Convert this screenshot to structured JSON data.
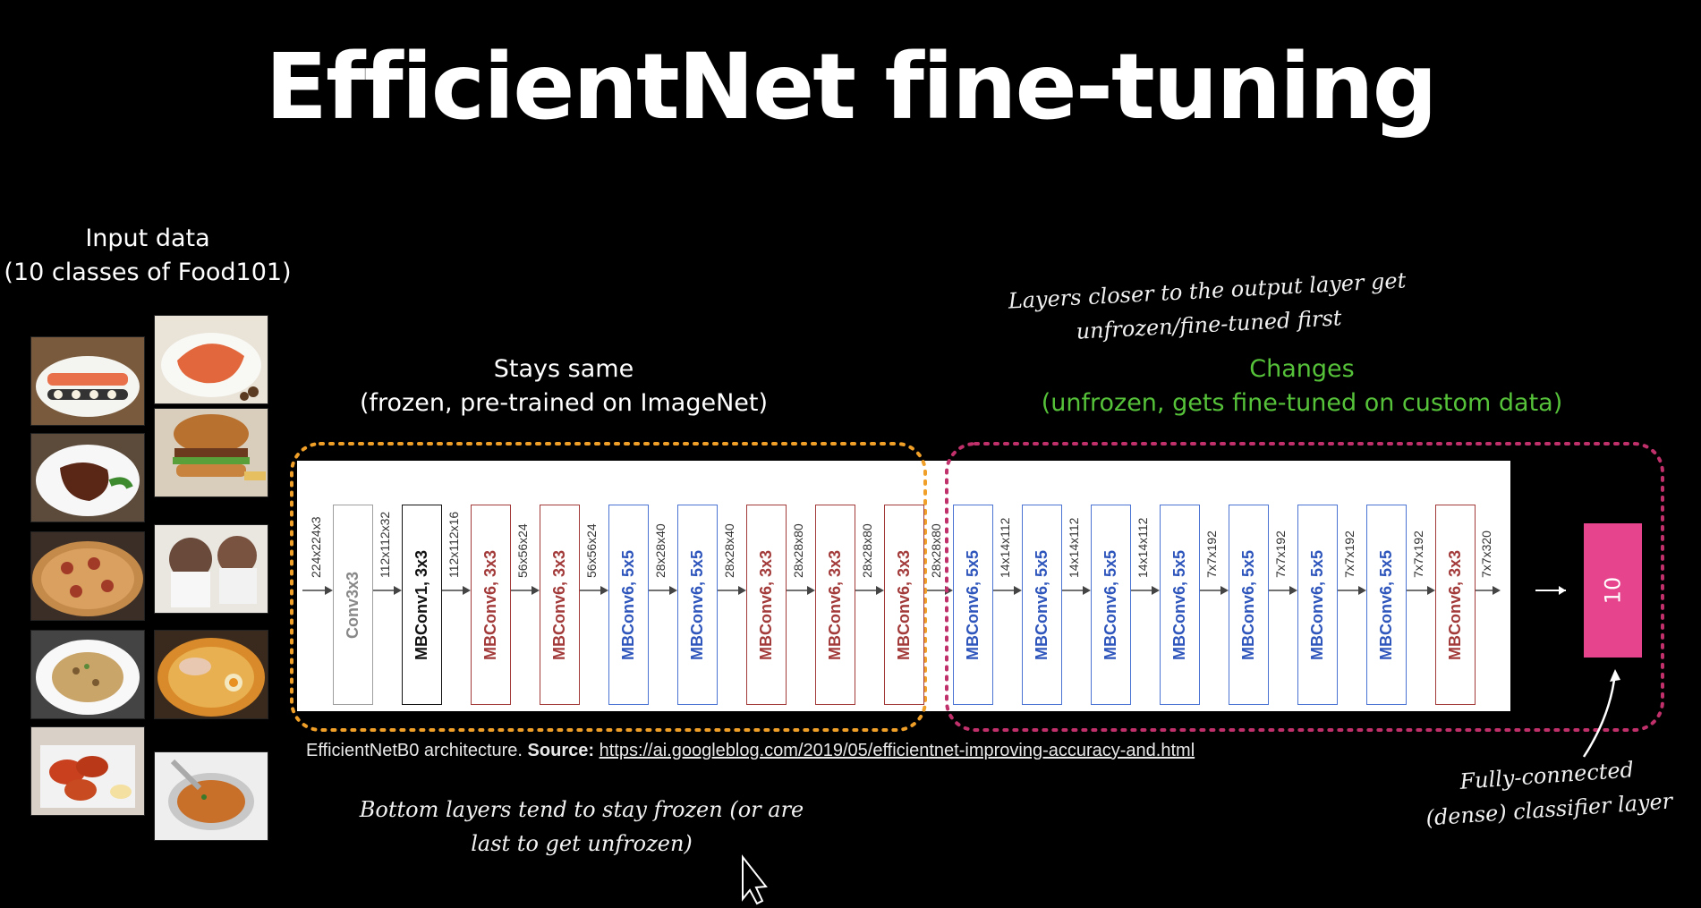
{
  "title": "EfficientNet fine-tuning",
  "input": {
    "title": "Input data",
    "subtitle": "(10 classes of Food101)"
  },
  "frozen": {
    "title": "Stays same",
    "subtitle": "(frozen, pre-trained on ImageNet)"
  },
  "changes": {
    "title": "Changes",
    "subtitle": "(unfrozen, gets fine-tuned on custom data)"
  },
  "notes": {
    "top_line1": "Layers closer to the output layer get",
    "top_line2": "unfrozen/fine-tuned first",
    "bottom_line1": "Bottom layers tend to stay frozen (or are",
    "bottom_line2": "last to get unfrozen)",
    "fc_line1": "Fully-connected",
    "fc_line2": "(dense) classifier layer"
  },
  "caption": {
    "prefix": "EfficientNetB0 architecture.",
    "source_label": "Source:",
    "url": "https://ai.googleblog.com/2019/05/efficientnet-improving-accuracy-and.html"
  },
  "dims": [
    "224x224x3",
    "112x112x32",
    "112x112x16",
    "56x56x24",
    "56x56x24",
    "28x28x40",
    "28x28x40",
    "28x28x80",
    "28x28x80",
    "28x28x80",
    "14x14x112",
    "14x14x112",
    "14x14x112",
    "7x7x192",
    "7x7x192",
    "7x7x192",
    "7x7x192",
    "7x7x320"
  ],
  "blocks": [
    {
      "label": "Conv3x3",
      "color": "#9e9e9e",
      "text": "#888888"
    },
    {
      "label": "MBConv1, 3x3",
      "color": "#111111",
      "text": "#111111"
    },
    {
      "label": "MBConv6, 3x3",
      "color": "#a33a3a",
      "text": "#a33a3a"
    },
    {
      "label": "MBConv6, 3x3",
      "color": "#a33a3a",
      "text": "#a33a3a"
    },
    {
      "label": "MBConv6, 5x5",
      "color": "#4a73d4",
      "text": "#2e55bb"
    },
    {
      "label": "MBConv6, 5x5",
      "color": "#4a73d4",
      "text": "#2e55bb"
    },
    {
      "label": "MBConv6, 3x3",
      "color": "#a33a3a",
      "text": "#a33a3a"
    },
    {
      "label": "MBConv6, 3x3",
      "color": "#a33a3a",
      "text": "#a33a3a"
    },
    {
      "label": "MBConv6, 3x3",
      "color": "#a33a3a",
      "text": "#a33a3a"
    },
    {
      "label": "MBConv6, 5x5",
      "color": "#4a73d4",
      "text": "#2e55bb"
    },
    {
      "label": "MBConv6, 5x5",
      "color": "#4a73d4",
      "text": "#2e55bb"
    },
    {
      "label": "MBConv6, 5x5",
      "color": "#4a73d4",
      "text": "#2e55bb"
    },
    {
      "label": "MBConv6, 5x5",
      "color": "#4a73d4",
      "text": "#2e55bb"
    },
    {
      "label": "MBConv6, 5x5",
      "color": "#4a73d4",
      "text": "#2e55bb"
    },
    {
      "label": "MBConv6, 5x5",
      "color": "#4a73d4",
      "text": "#2e55bb"
    },
    {
      "label": "MBConv6, 5x5",
      "color": "#4a73d4",
      "text": "#2e55bb"
    },
    {
      "label": "MBConv6, 3x3",
      "color": "#a33a3a",
      "text": "#a33a3a"
    }
  ],
  "output": {
    "label": "10",
    "color": "#e6448c"
  },
  "colors": {
    "frozen_outline": "#f0a028",
    "changes_outline": "#c0306a",
    "changes_text": "#56c23a"
  }
}
